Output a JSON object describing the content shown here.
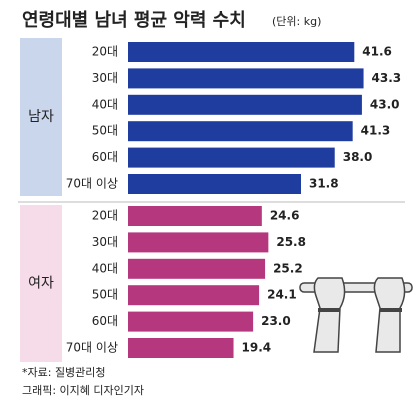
{
  "chart_data": {
    "type": "bar",
    "orientation": "horizontal",
    "title": "연령대별 남녀 평균 악력 수치",
    "subtitle": "(단위: kg)",
    "categories": [
      "20대",
      "30대",
      "40대",
      "50대",
      "60대",
      "70대 이상"
    ],
    "series": [
      {
        "name": "남자",
        "color": "#1f3c9f",
        "values": [
          41.6,
          43.3,
          43.0,
          41.3,
          38.0,
          31.8
        ],
        "value_labels": [
          "41.6",
          "43.3",
          "43.0",
          "41.3",
          "38.0",
          "31.8"
        ]
      },
      {
        "name": "여자",
        "color": "#b5387f",
        "values": [
          24.6,
          25.8,
          25.2,
          24.1,
          23.0,
          19.4
        ],
        "value_labels": [
          "24.6",
          "25.8",
          "25.2",
          "24.1",
          "23.0",
          "19.4"
        ]
      }
    ],
    "xlim": [
      0,
      50
    ],
    "source": "*자료: 질병관리청",
    "credit": "그래픽: 이지혜 디자인기자"
  }
}
